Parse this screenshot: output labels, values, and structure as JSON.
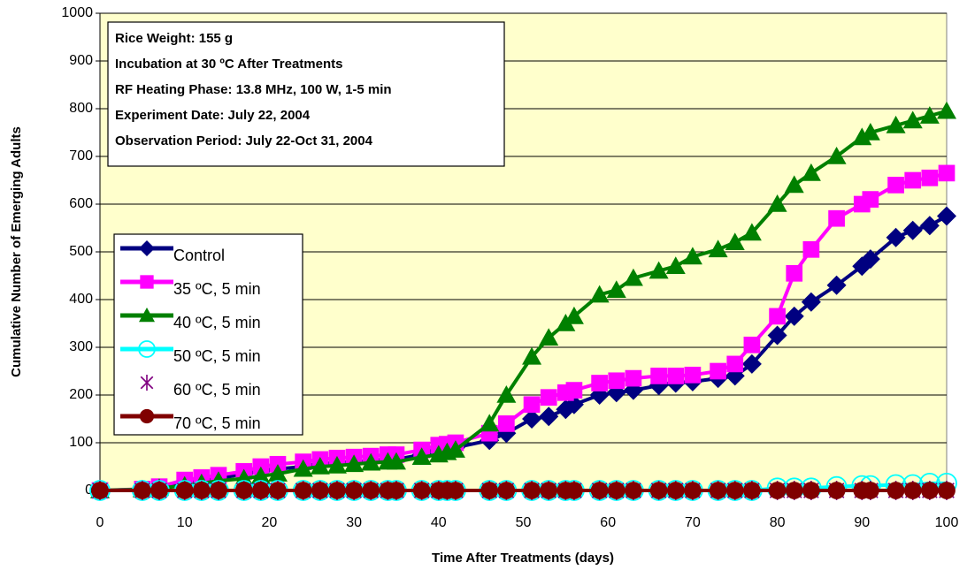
{
  "chart_data": {
    "type": "line",
    "x_label": "Time After Treatments (days)",
    "y_label": "Cumulative Number of Emerging Adults",
    "annotation": [
      "Rice Weight: 155 g",
      "Incubation at 30 ºC After Treatments",
      "RF Heating Phase: 13.8 MHz, 100 W, 1-5 min",
      "Experiment Date: July 22, 2004",
      "Observation Period: July 22-Oct 31, 2004"
    ],
    "xlim": [
      0,
      100
    ],
    "xticks": [
      0,
      10,
      20,
      30,
      40,
      50,
      60,
      70,
      80,
      90,
      100
    ],
    "ylim": [
      0,
      1000
    ],
    "yticks": [
      0,
      100,
      200,
      300,
      400,
      500,
      600,
      700,
      800,
      900,
      1000
    ],
    "grid": true,
    "legend": "left",
    "x": [
      0,
      5,
      7,
      10,
      12,
      14,
      17,
      19,
      21,
      24,
      26,
      28,
      30,
      32,
      34,
      35,
      38,
      40,
      41,
      42,
      46,
      48,
      51,
      53,
      55,
      56,
      59,
      61,
      63,
      66,
      68,
      70,
      73,
      75,
      77,
      80,
      82,
      84,
      87,
      90,
      91,
      94,
      96,
      98,
      100
    ],
    "series": [
      {
        "name": "Control",
        "color": "#000080",
        "marker": "diamond",
        "values": [
          0,
          2,
          5,
          15,
          20,
          25,
          35,
          40,
          45,
          50,
          55,
          58,
          60,
          62,
          65,
          65,
          75,
          85,
          88,
          90,
          105,
          120,
          150,
          155,
          170,
          180,
          200,
          205,
          210,
          220,
          225,
          228,
          235,
          240,
          265,
          325,
          365,
          395,
          430,
          470,
          485,
          530,
          545,
          555,
          575
        ]
      },
      {
        "name": "35 ºC, 5 min",
        "color": "#FF00FF",
        "marker": "square",
        "values": [
          0,
          3,
          8,
          22,
          27,
          32,
          40,
          50,
          55,
          60,
          65,
          68,
          70,
          72,
          75,
          75,
          85,
          95,
          97,
          100,
          120,
          140,
          180,
          195,
          205,
          210,
          225,
          230,
          235,
          240,
          240,
          242,
          250,
          265,
          305,
          365,
          455,
          505,
          570,
          600,
          610,
          640,
          650,
          655,
          665
        ]
      },
      {
        "name": "40 ºC, 5 min",
        "color": "#008000",
        "marker": "triangle",
        "values": [
          0,
          2,
          5,
          10,
          15,
          20,
          25,
          30,
          35,
          45,
          50,
          52,
          55,
          58,
          60,
          60,
          70,
          75,
          80,
          85,
          140,
          200,
          280,
          320,
          350,
          365,
          410,
          420,
          445,
          460,
          470,
          490,
          505,
          520,
          540,
          600,
          640,
          665,
          700,
          740,
          750,
          765,
          775,
          785,
          795
        ]
      },
      {
        "name": "50 ºC, 5 min",
        "color": "#00FFFF",
        "marker": "circle-open",
        "values": [
          0,
          0,
          0,
          0,
          0,
          0,
          0,
          0,
          0,
          0,
          0,
          0,
          0,
          0,
          0,
          0,
          0,
          0,
          0,
          0,
          0,
          0,
          0,
          0,
          0,
          0,
          0,
          0,
          0,
          0,
          0,
          0,
          0,
          0,
          0,
          5,
          5,
          5,
          8,
          10,
          10,
          12,
          12,
          15,
          15
        ]
      },
      {
        "name": "60 ºC, 5 min",
        "color": "#800080",
        "marker": "star",
        "line": false,
        "values": [
          0,
          0,
          0,
          0,
          0,
          0,
          0,
          0,
          0,
          0,
          0,
          0,
          0,
          0,
          0,
          0,
          0,
          0,
          0,
          0,
          0,
          0,
          0,
          0,
          0,
          0,
          0,
          0,
          0,
          0,
          0,
          0,
          0,
          0,
          0,
          0,
          0,
          0,
          0,
          0,
          0,
          0,
          0,
          0,
          0
        ]
      },
      {
        "name": "70 ºC, 5 min",
        "color": "#800000",
        "marker": "circle",
        "values": [
          0,
          0,
          0,
          0,
          0,
          0,
          0,
          0,
          0,
          0,
          0,
          0,
          0,
          0,
          0,
          0,
          0,
          0,
          0,
          0,
          0,
          0,
          0,
          0,
          0,
          0,
          0,
          0,
          0,
          0,
          0,
          0,
          0,
          0,
          0,
          0,
          0,
          0,
          0,
          0,
          0,
          0,
          0,
          0,
          0
        ]
      }
    ]
  }
}
